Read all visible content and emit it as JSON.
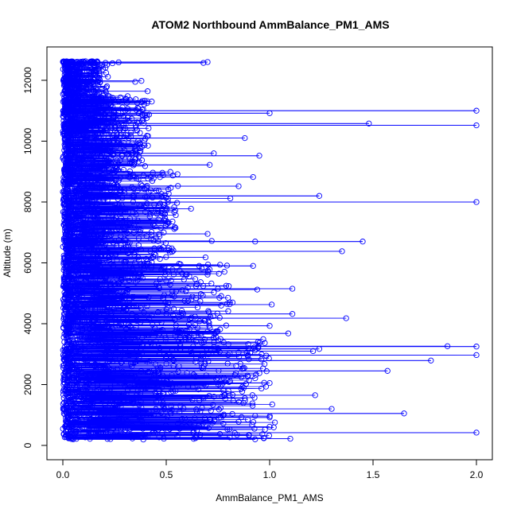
{
  "chart_data": {
    "type": "scatter",
    "title": "ATOM2 Northbound AmmBalance_PM1_AMS",
    "xlabel": "AmmBalance_PM1_AMS",
    "ylabel": "Altitude (m)",
    "xlim": [
      0,
      2.0
    ],
    "ylim": [
      0,
      12600
    ],
    "x_ticks": [
      0.0,
      0.5,
      1.0,
      1.5,
      2.0
    ],
    "x_tick_labels": [
      "0.0",
      "0.5",
      "1.0",
      "1.5",
      "2.0"
    ],
    "y_ticks": [
      0,
      2000,
      4000,
      6000,
      8000,
      10000,
      12000
    ],
    "y_tick_labels": [
      "0",
      "2000",
      "4000",
      "6000",
      "8000",
      "10000",
      "12000"
    ],
    "grid": false,
    "legend": "none",
    "marker": "open-circle",
    "connected_by_lines": true,
    "series_color": "#0000ff",
    "points": [
      {
        "x": 0.7,
        "y": 12600
      },
      {
        "x": 0.68,
        "y": 12570
      },
      {
        "x": 0.27,
        "y": 12590
      },
      {
        "x": 0.24,
        "y": 12560
      },
      {
        "x": 0.16,
        "y": 12320
      },
      {
        "x": 0.38,
        "y": 11980
      },
      {
        "x": 0.35,
        "y": 11950
      },
      {
        "x": 0.41,
        "y": 11640
      },
      {
        "x": 0.43,
        "y": 11300
      },
      {
        "x": 0.38,
        "y": 11280
      },
      {
        "x": 2.0,
        "y": 11000
      },
      {
        "x": 1.0,
        "y": 10920
      },
      {
        "x": 1.48,
        "y": 10580
      },
      {
        "x": 2.0,
        "y": 10520
      },
      {
        "x": 0.88,
        "y": 10100
      },
      {
        "x": 0.95,
        "y": 9520
      },
      {
        "x": 0.73,
        "y": 9600
      },
      {
        "x": 0.71,
        "y": 9220
      },
      {
        "x": 0.92,
        "y": 8820
      },
      {
        "x": 0.85,
        "y": 8520
      },
      {
        "x": 1.24,
        "y": 8200
      },
      {
        "x": 2.0,
        "y": 8000
      },
      {
        "x": 0.81,
        "y": 8120
      },
      {
        "x": 0.62,
        "y": 7780
      },
      {
        "x": 0.7,
        "y": 6950
      },
      {
        "x": 1.45,
        "y": 6700
      },
      {
        "x": 0.93,
        "y": 6700
      },
      {
        "x": 0.72,
        "y": 6720
      },
      {
        "x": 1.35,
        "y": 6380
      },
      {
        "x": 0.69,
        "y": 6180
      },
      {
        "x": 0.92,
        "y": 5900
      },
      {
        "x": 1.11,
        "y": 5150
      },
      {
        "x": 0.94,
        "y": 5120
      },
      {
        "x": 1.01,
        "y": 4630
      },
      {
        "x": 1.11,
        "y": 4320
      },
      {
        "x": 1.37,
        "y": 4180
      },
      {
        "x": 1.0,
        "y": 3930
      },
      {
        "x": 1.09,
        "y": 3680
      },
      {
        "x": 1.86,
        "y": 3260
      },
      {
        "x": 2.0,
        "y": 3250
      },
      {
        "x": 1.24,
        "y": 3170
      },
      {
        "x": 1.21,
        "y": 3100
      },
      {
        "x": 2.0,
        "y": 2970
      },
      {
        "x": 1.78,
        "y": 2790
      },
      {
        "x": 1.57,
        "y": 2450
      },
      {
        "x": 1.0,
        "y": 2050
      },
      {
        "x": 0.93,
        "y": 2210
      },
      {
        "x": 1.22,
        "y": 1650
      },
      {
        "x": 0.88,
        "y": 1550
      },
      {
        "x": 1.3,
        "y": 1200
      },
      {
        "x": 1.65,
        "y": 1050
      },
      {
        "x": 1.0,
        "y": 920
      },
      {
        "x": 0.85,
        "y": 780
      },
      {
        "x": 2.0,
        "y": 420
      },
      {
        "x": 0.9,
        "y": 330
      },
      {
        "x": 1.1,
        "y": 220
      },
      {
        "x": 0.93,
        "y": 200
      },
      {
        "x": 0.23,
        "y": 210
      },
      {
        "x": 0.05,
        "y": 200
      }
    ]
  }
}
